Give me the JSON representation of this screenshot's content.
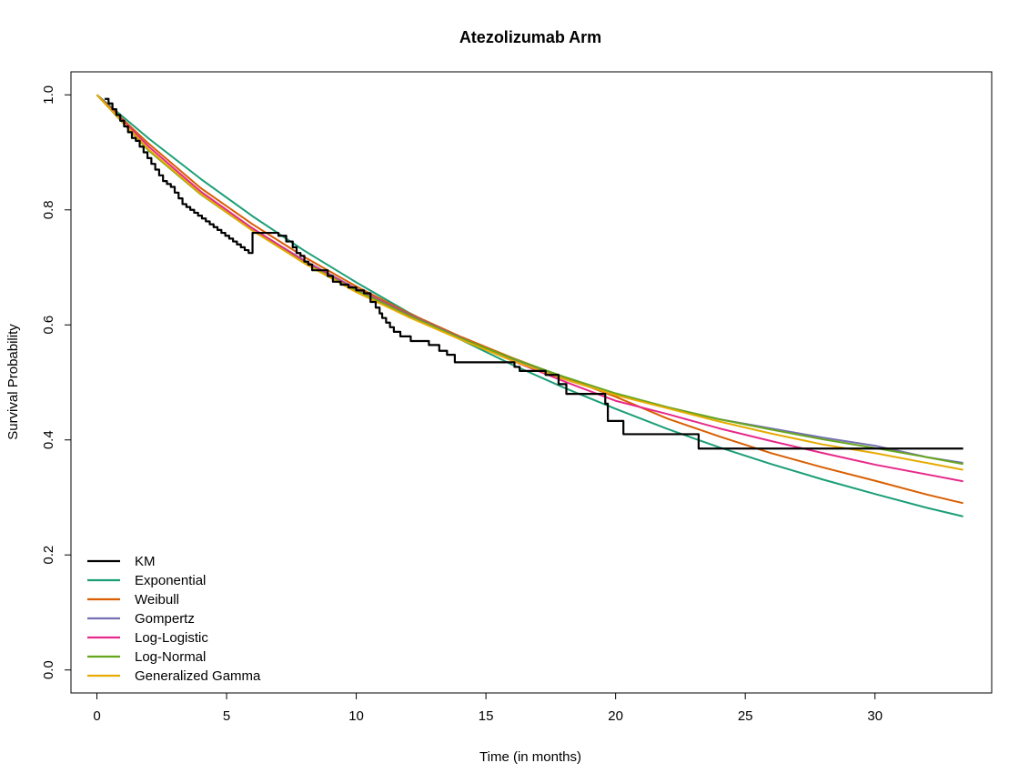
{
  "chart_data": {
    "type": "line",
    "title": "Atezolizumab Arm",
    "xlabel": "Time (in months)",
    "ylabel": "Survival Probability",
    "xlim": [
      -1.0,
      34.5
    ],
    "ylim": [
      -0.04,
      1.04
    ],
    "xticks": [
      0,
      5,
      10,
      15,
      20,
      25,
      30
    ],
    "yticks": [
      0.0,
      0.2,
      0.4,
      0.6,
      0.8,
      1.0
    ],
    "xtick_labels": [
      "0",
      "5",
      "10",
      "15",
      "20",
      "25",
      "30"
    ],
    "ytick_labels": [
      "0.0",
      "0.2",
      "0.4",
      "0.6",
      "0.8",
      "1.0"
    ],
    "legend_position": "bottom-left",
    "series": [
      {
        "name": "KM",
        "color": "#000000",
        "step": true,
        "x": [
          0.3,
          0.45,
          0.6,
          0.75,
          0.9,
          1.05,
          1.2,
          1.35,
          1.5,
          1.65,
          1.8,
          1.95,
          2.1,
          2.25,
          2.4,
          2.55,
          2.7,
          2.85,
          3.0,
          3.15,
          3.3,
          3.45,
          3.6,
          3.75,
          3.9,
          4.05,
          4.2,
          4.35,
          4.5,
          4.65,
          4.8,
          4.95,
          5.1,
          5.25,
          5.4,
          5.55,
          5.7,
          5.85,
          6.0,
          7.0,
          7.3,
          7.55,
          7.7,
          7.85,
          8.0,
          8.15,
          8.3,
          8.9,
          9.1,
          9.4,
          9.7,
          10.0,
          10.3,
          10.55,
          10.75,
          10.9,
          11.0,
          11.15,
          11.3,
          11.45,
          11.7,
          12.1,
          12.8,
          13.2,
          13.5,
          13.8,
          16.1,
          16.3,
          17.3,
          17.8,
          18.1,
          19.6,
          19.7,
          20.3,
          23.2,
          33.4
        ],
        "y": [
          0.993,
          0.985,
          0.975,
          0.965,
          0.955,
          0.945,
          0.935,
          0.925,
          0.92,
          0.91,
          0.9,
          0.89,
          0.88,
          0.87,
          0.86,
          0.85,
          0.845,
          0.84,
          0.83,
          0.82,
          0.81,
          0.805,
          0.8,
          0.795,
          0.79,
          0.785,
          0.78,
          0.775,
          0.77,
          0.765,
          0.76,
          0.755,
          0.75,
          0.745,
          0.74,
          0.735,
          0.73,
          0.725,
          0.76,
          0.755,
          0.745,
          0.735,
          0.725,
          0.72,
          0.71,
          0.705,
          0.695,
          0.685,
          0.675,
          0.67,
          0.665,
          0.66,
          0.655,
          0.64,
          0.63,
          0.62,
          0.612,
          0.604,
          0.596,
          0.588,
          0.58,
          0.572,
          0.565,
          0.555,
          0.548,
          0.535,
          0.527,
          0.52,
          0.513,
          0.497,
          0.48,
          0.463,
          0.433,
          0.41,
          0.385,
          0.385
        ]
      },
      {
        "name": "Exponential",
        "color": "#1B9E77",
        "x": [
          0,
          2,
          4,
          6,
          8,
          10,
          12,
          14,
          16,
          18,
          20,
          22,
          24,
          26,
          28,
          30,
          32,
          33.4
        ],
        "y": [
          1.0,
          0.924,
          0.854,
          0.789,
          0.729,
          0.674,
          0.622,
          0.575,
          0.531,
          0.491,
          0.454,
          0.419,
          0.387,
          0.358,
          0.331,
          0.306,
          0.282,
          0.267
        ]
      },
      {
        "name": "Weibull",
        "color": "#D95F02",
        "x": [
          0,
          2,
          4,
          6,
          8,
          10,
          12,
          14,
          16,
          18,
          20,
          22,
          24,
          26,
          28,
          30,
          32,
          33.4
        ],
        "y": [
          1.0,
          0.915,
          0.838,
          0.775,
          0.718,
          0.667,
          0.621,
          0.58,
          0.543,
          0.509,
          0.475,
          0.437,
          0.406,
          0.377,
          0.352,
          0.329,
          0.305,
          0.29
        ]
      },
      {
        "name": "Gompertz",
        "color": "#7570B3",
        "x": [
          0,
          2,
          4,
          6,
          8,
          10,
          12,
          14,
          16,
          18,
          20,
          22,
          24,
          26,
          28,
          30,
          32,
          33.4
        ],
        "y": [
          1.0,
          0.904,
          0.829,
          0.767,
          0.712,
          0.663,
          0.619,
          0.578,
          0.54,
          0.506,
          0.478,
          0.456,
          0.436,
          0.42,
          0.404,
          0.39,
          0.37,
          0.36
        ]
      },
      {
        "name": "Log-Logistic",
        "color": "#E7298A",
        "x": [
          0,
          2,
          4,
          6,
          8,
          10,
          12,
          14,
          16,
          18,
          20,
          22,
          24,
          26,
          28,
          30,
          32,
          33.4
        ],
        "y": [
          1.0,
          0.91,
          0.832,
          0.768,
          0.711,
          0.662,
          0.618,
          0.577,
          0.538,
          0.502,
          0.468,
          0.445,
          0.42,
          0.398,
          0.377,
          0.357,
          0.34,
          0.328
        ]
      },
      {
        "name": "Log-Normal",
        "color": "#66A61E",
        "x": [
          0,
          2,
          4,
          6,
          8,
          10,
          12,
          14,
          16,
          18,
          20,
          22,
          24,
          26,
          28,
          30,
          32,
          33.4
        ],
        "y": [
          1.0,
          0.903,
          0.827,
          0.764,
          0.708,
          0.66,
          0.617,
          0.577,
          0.542,
          0.51,
          0.481,
          0.457,
          0.436,
          0.418,
          0.401,
          0.386,
          0.37,
          0.358
        ]
      },
      {
        "name": "Generalized Gamma",
        "color": "#E6AB02",
        "x": [
          0,
          2,
          4,
          6,
          8,
          10,
          12,
          14,
          16,
          18,
          20,
          22,
          24,
          26,
          28,
          30,
          32,
          33.4
        ],
        "y": [
          1.0,
          0.905,
          0.828,
          0.764,
          0.707,
          0.657,
          0.614,
          0.575,
          0.538,
          0.506,
          0.478,
          0.455,
          0.432,
          0.411,
          0.392,
          0.377,
          0.36,
          0.348
        ]
      }
    ]
  }
}
